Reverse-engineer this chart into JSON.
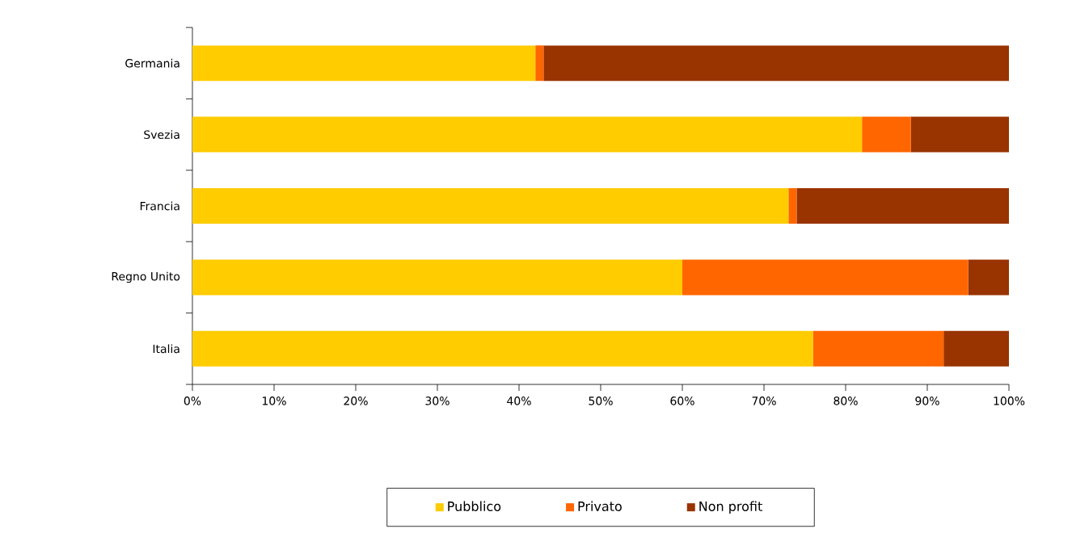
{
  "chart_data": {
    "type": "bar",
    "orientation": "horizontal",
    "stacked": true,
    "categories": [
      "Germania",
      "Svezia",
      "Francia",
      "Regno Unito",
      "Italia"
    ],
    "series": [
      {
        "name": "Pubblico",
        "color": "#ffcc00",
        "values": [
          42,
          82,
          73,
          60,
          76
        ]
      },
      {
        "name": "Privato",
        "color": "#ff6600",
        "values": [
          1,
          6,
          1,
          35,
          16
        ]
      },
      {
        "name": "Non profit",
        "color": "#993300",
        "values": [
          57,
          12,
          26,
          5,
          8
        ]
      }
    ],
    "xlim": [
      0,
      100
    ],
    "xticks": [
      {
        "value": 0,
        "label": "0%"
      },
      {
        "value": 10,
        "label": "10%"
      },
      {
        "value": 20,
        "label": "20%"
      },
      {
        "value": 30,
        "label": "30%"
      },
      {
        "value": 40,
        "label": "40%"
      },
      {
        "value": 50,
        "label": "50%"
      },
      {
        "value": 60,
        "label": "60%"
      },
      {
        "value": 70,
        "label": "70%"
      },
      {
        "value": 80,
        "label": "80%"
      },
      {
        "value": 90,
        "label": "90%"
      },
      {
        "value": 100,
        "label": "100%"
      }
    ],
    "grid": false,
    "legend": "bottom"
  }
}
